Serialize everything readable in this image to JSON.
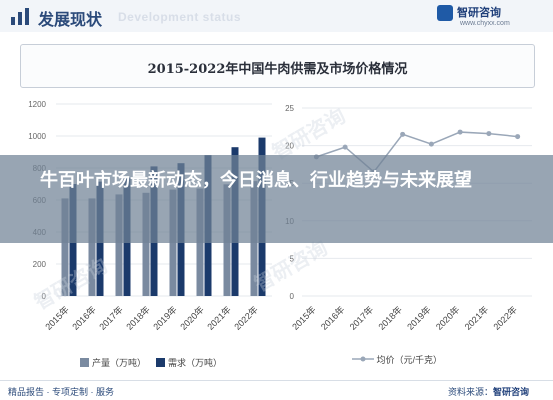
{
  "header": {
    "title": "发展现状",
    "subtitle_en": "Development status",
    "brand_name": "智研咨询",
    "brand_url": "www.chyxx.com"
  },
  "headline": "牛百叶市场最新动态，今日消息、行业趋势与未来展望",
  "watermark": "智研咨询",
  "footer": {
    "left": "精品报告 · 专项定制 · 服务",
    "right_prefix": "资料来源：",
    "right_brand": "智研咨询"
  },
  "colors": {
    "production": "#7a8aa0",
    "demand": "#1b3a6b",
    "price": "#9aa7b8",
    "header": "#2b4a7a"
  },
  "chart_data": [
    {
      "type": "bar",
      "title": "2015-2022年中国牛肉供需及市场价格情况",
      "categories": [
        "2015年",
        "2016年",
        "2017年",
        "2018年",
        "2019年",
        "2020年",
        "2021年",
        "2022年"
      ],
      "series": [
        {
          "name": "产量（万吨）",
          "values": [
            610,
            610,
            635,
            645,
            665,
            672,
            698,
            718
          ]
        },
        {
          "name": "需求（万吨）",
          "values": [
            700,
            715,
            740,
            810,
            830,
            880,
            930,
            990
          ]
        }
      ],
      "ylim": [
        0,
        1200
      ],
      "yticks": [
        0,
        200,
        400,
        600,
        800,
        1000,
        1200
      ],
      "grid": true,
      "legend": "bottom"
    },
    {
      "type": "line",
      "categories": [
        "2015年",
        "2016年",
        "2017年",
        "2018年",
        "2019年",
        "2020年",
        "2021年",
        "2022年"
      ],
      "series": [
        {
          "name": "均价（元/千克）",
          "values": [
            18.5,
            19.8,
            16.5,
            21.5,
            20.2,
            21.8,
            21.6,
            21.2
          ]
        }
      ],
      "ylim": [
        0,
        25
      ],
      "yticks": [
        0,
        5,
        10,
        15,
        20,
        25
      ],
      "grid": true,
      "legend": "bottom"
    }
  ]
}
